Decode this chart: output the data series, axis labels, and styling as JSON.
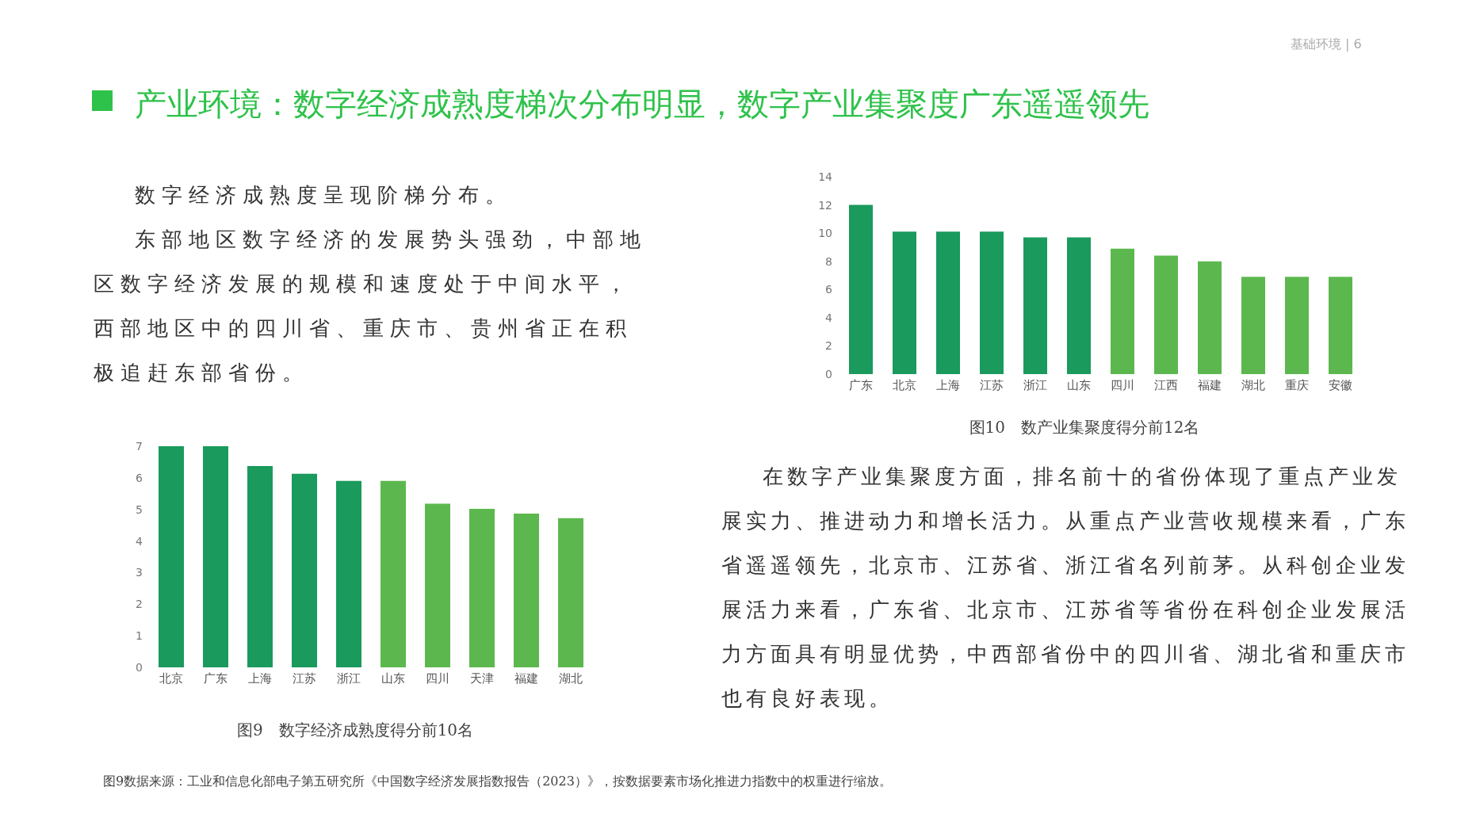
{
  "chart_data": [
    {
      "type": "other",
      "title": "产业环境：数字经济成熟度梯次分布明显，数字产业集聚度广东遥遥领先",
      "annotations": [
        "基础环境 | 6",
        "数字经济成熟度呈现阶梯分布。",
        "东部地区数字经济的发展势头强劲，中部地区数字经济发展的规模和速度处于中间水平，西部地区中的四川省、重庆市、贵州省正在积极追赶东部省份。",
        "在数字产业集聚度方面，排名前十的省份体现了重点产业发展实力、推进动力和增长活力。从重点产业营收规模来看，广东省遥遥领先，北京市、江苏省、浙江省名列前茅。从科创企业发展活力来看，广东省、北京市、江苏省等省份在科创企业发展活力方面具有明显优势，中西部省份中的四川省、湖北省和重庆市也有良好表现。",
        "图9数据来源：工业和信息化部电子第五研究所《中国数字经济发展指数报告（2023）》，按数据要素市场化推进力指数中的权重进行缩放。"
      ]
    },
    {
      "type": "bar",
      "title": "图10　数产业集聚度得分前12名",
      "categories": [
        "广东",
        "北京",
        "上海",
        "江苏",
        "浙江",
        "山东",
        "四川",
        "江西",
        "福建",
        "湖北",
        "重庆",
        "安徽"
      ],
      "values": [
        12.0,
        10.1,
        10.1,
        10.1,
        9.7,
        9.7,
        8.9,
        8.4,
        8.0,
        6.9,
        6.9,
        6.9
      ],
      "colors": [
        "#1a9a5c",
        "#1a9a5c",
        "#1a9a5c",
        "#1a9a5c",
        "#1a9a5c",
        "#1a9a5c",
        "#5cb84e",
        "#5cb84e",
        "#5cb84e",
        "#5cb84e",
        "#5cb84e",
        "#5cb84e"
      ],
      "ylim": [
        0,
        14
      ],
      "yticks": [
        0,
        2,
        4,
        6,
        8,
        10,
        12,
        14
      ],
      "grid": false
    },
    {
      "type": "bar",
      "title": "图9　数字经济成熟度得分前10名",
      "categories": [
        "北京",
        "广东",
        "上海",
        "江苏",
        "浙江",
        "山东",
        "四川",
        "天津",
        "福建",
        "湖北"
      ],
      "values": [
        7.0,
        7.0,
        6.37,
        6.13,
        5.9,
        5.9,
        5.18,
        5.02,
        4.87,
        4.72
      ],
      "colors": [
        "#1a9a5c",
        "#1a9a5c",
        "#1a9a5c",
        "#1a9a5c",
        "#1a9a5c",
        "#5cb84e",
        "#5cb84e",
        "#5cb84e",
        "#5cb84e",
        "#5cb84e"
      ],
      "ylim": [
        0,
        7
      ],
      "yticks": [
        0,
        1,
        2,
        3,
        4,
        5,
        6,
        7
      ],
      "grid": false
    }
  ]
}
